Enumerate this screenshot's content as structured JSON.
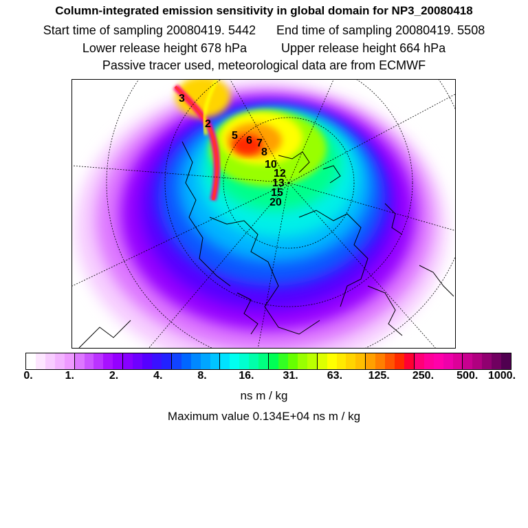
{
  "header": {
    "title": "Column-integrated emission sensitivity in global domain for NP3_20080418",
    "start_time": "Start time of sampling 20080419.  5442",
    "end_time": "End time of sampling 20080419.  5508",
    "lower_height": "Lower release height  678 hPa",
    "upper_height": "Upper release height  664 hPa",
    "tracer_note": "Passive tracer used, meteorological data are from ECMWF"
  },
  "map": {
    "trajectory_labels": [
      "3",
      "2",
      "5",
      "6",
      "7",
      "8",
      "10",
      "12",
      "13",
      "15",
      "20"
    ]
  },
  "colorbar": {
    "colors": [
      "#ffffff",
      "#fde6ff",
      "#f8ccff",
      "#f3b3ff",
      "#ee99ff",
      "#dd77ff",
      "#cc55ff",
      "#bb33ff",
      "#a811ff",
      "#9500ff",
      "#8800ff",
      "#6f00ff",
      "#5500ff",
      "#3a11ff",
      "#2222ff",
      "#1144ff",
      "#0066ff",
      "#0088ff",
      "#00a6ff",
      "#00c4ff",
      "#00e2ff",
      "#00fff0",
      "#00ffd0",
      "#00ffaa",
      "#00ff80",
      "#00ff55",
      "#33ff22",
      "#66ff00",
      "#99ff00",
      "#bbff00",
      "#ddff00",
      "#ffff00",
      "#ffea00",
      "#ffd400",
      "#ffbe00",
      "#ffa000",
      "#ff7f00",
      "#ff5500",
      "#ff2a00",
      "#ff0033",
      "#ff0077",
      "#ff0099",
      "#ff00aa",
      "#ee00aa",
      "#dd0099",
      "#c80090",
      "#b00080",
      "#900070",
      "#700060",
      "#500050"
    ],
    "tick_labels": [
      "0.",
      "1.",
      "2.",
      "4.",
      "8.",
      "16.",
      "31.",
      "63.",
      "125.",
      "250.",
      "500.",
      "1000."
    ]
  },
  "units_label": "ns m / kg",
  "max_value": "Maximum value  0.134E+04 ns m / kg"
}
